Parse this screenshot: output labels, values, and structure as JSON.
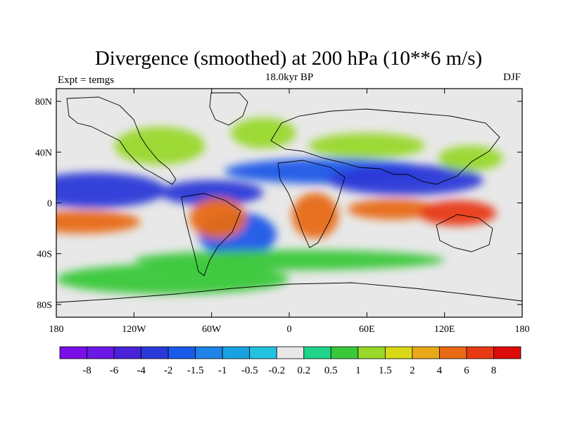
{
  "chart_data": {
    "type": "heatmap",
    "title": "Divergence (smoothed) at 200 hPa (10**6 m/s)",
    "subtitle_left": "Expt = temgs",
    "subtitle_center": "18.0kyr BP",
    "subtitle_right": "DJF",
    "x_axis": {
      "range": [
        -180,
        180
      ],
      "ticks": [
        {
          "value": -180,
          "label": "180"
        },
        {
          "value": -120,
          "label": "120W"
        },
        {
          "value": -60,
          "label": "60W"
        },
        {
          "value": 0,
          "label": "0"
        },
        {
          "value": 60,
          "label": "60E"
        },
        {
          "value": 120,
          "label": "120E"
        },
        {
          "value": 180,
          "label": "180"
        }
      ]
    },
    "y_axis": {
      "range": [
        -90,
        90
      ],
      "ticks": [
        {
          "value": 80,
          "label": "80N"
        },
        {
          "value": 40,
          "label": "40N"
        },
        {
          "value": 0,
          "label": "0"
        },
        {
          "value": -40,
          "label": "40S"
        },
        {
          "value": -80,
          "label": "80S"
        }
      ]
    },
    "colorbar": {
      "levels": [
        "-8",
        "-6",
        "-4",
        "-2",
        "-1.5",
        "-1",
        "-0.5",
        "-0.2",
        "0.2",
        "0.5",
        "1",
        "1.5",
        "2",
        "4",
        "6",
        "8"
      ],
      "colors": [
        "#7a0ee6",
        "#6a18e6",
        "#4a22d8",
        "#2a3ad8",
        "#1a5ae8",
        "#1f82e6",
        "#18a2e2",
        "#22c2e2",
        "#e8e8e8",
        "#1ed48a",
        "#3ac83a",
        "#98d82a",
        "#d8d818",
        "#e8a818",
        "#e86a14",
        "#e83a14",
        "#dc0a0a"
      ]
    },
    "field_blobs": [
      {
        "lon": -150,
        "lat": 10,
        "w": 55,
        "h": 14,
        "value": -3
      },
      {
        "lon": -60,
        "lat": 8,
        "w": 40,
        "h": 10,
        "value": -3
      },
      {
        "lon": 30,
        "lat": 25,
        "w": 80,
        "h": 10,
        "value": -2
      },
      {
        "lon": 90,
        "lat": 18,
        "w": 60,
        "h": 12,
        "value": -3
      },
      {
        "lon": -40,
        "lat": -25,
        "w": 30,
        "h": 18,
        "value": -2
      },
      {
        "lon": -160,
        "lat": -15,
        "w": 45,
        "h": 9,
        "value": 4
      },
      {
        "lon": -55,
        "lat": -12,
        "w": 22,
        "h": 16,
        "value": 4
      },
      {
        "lon": 20,
        "lat": -10,
        "w": 18,
        "h": 18,
        "value": 5
      },
      {
        "lon": 80,
        "lat": -5,
        "w": 35,
        "h": 8,
        "value": 4
      },
      {
        "lon": 130,
        "lat": -8,
        "w": 30,
        "h": 10,
        "value": 6
      },
      {
        "lon": 140,
        "lat": 35,
        "w": 25,
        "h": 10,
        "value": 1
      },
      {
        "lon": -100,
        "lat": 45,
        "w": 35,
        "h": 15,
        "value": 1
      },
      {
        "lon": -20,
        "lat": 55,
        "w": 25,
        "h": 12,
        "value": 1
      },
      {
        "lon": 60,
        "lat": 45,
        "w": 45,
        "h": 10,
        "value": 1
      },
      {
        "lon": 0,
        "lat": -45,
        "w": 120,
        "h": 8,
        "value": 0.5
      },
      {
        "lon": -90,
        "lat": -60,
        "w": 90,
        "h": 12,
        "value": 0.5
      }
    ]
  }
}
